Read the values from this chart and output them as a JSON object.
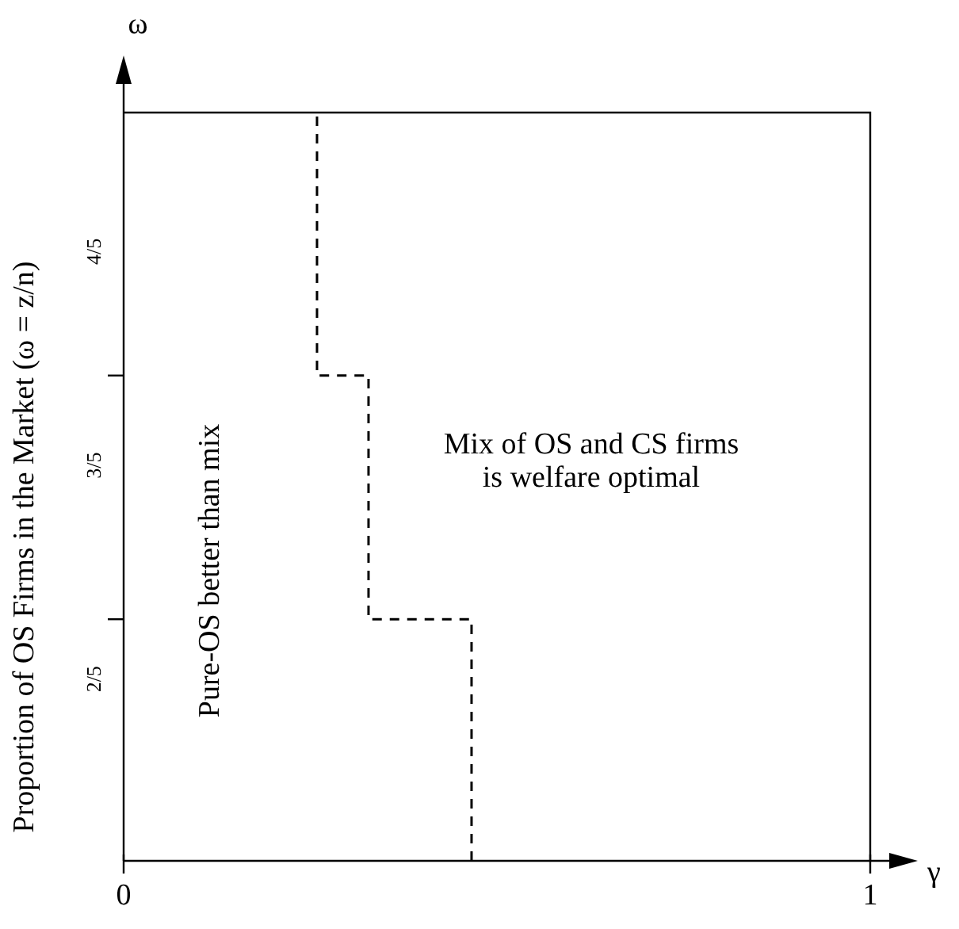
{
  "chart_data": {
    "type": "line",
    "xlabel": "γ",
    "ylabel": "Proportion of OS Firms in the Market (ω = z/n)",
    "xlim": [
      0,
      1
    ],
    "xticks": [
      0,
      1
    ],
    "ylim": [
      0.23,
      0.93
    ],
    "yticks": [
      {
        "value": 0.4,
        "label": "2/5"
      },
      {
        "value": 0.456,
        "label": null
      },
      {
        "value": 0.6,
        "label": "3/5"
      },
      {
        "value": 0.684,
        "label": null
      },
      {
        "value": 0.8,
        "label": "4/5"
      }
    ],
    "series": [
      {
        "color": "#000000",
        "line_style": "dashed",
        "marker": "none",
        "x": [
          0.466,
          0.466,
          0.328,
          0.328,
          0.259,
          0.259
        ],
        "values": [
          0.23,
          0.456,
          0.456,
          0.684,
          0.684,
          0.93
        ]
      }
    ],
    "annotations": [
      "ω",
      "Pure-OS better than mix",
      "Mix of OS and CS firms\nis welfare optimal"
    ],
    "grid": false,
    "legend": false
  }
}
